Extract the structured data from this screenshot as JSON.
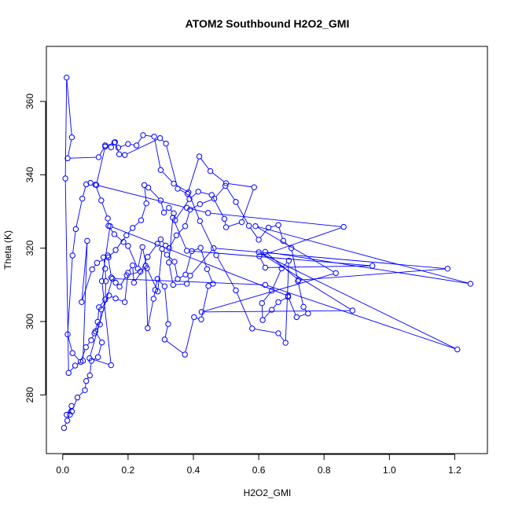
{
  "chart_data": {
    "type": "scatter",
    "title": "ATOM2 Southbound H2O2_GMI",
    "xlabel": "H2O2_GMI",
    "ylabel": "Theta (K)",
    "xlim": [
      -0.05,
      1.3
    ],
    "ylim": [
      264,
      375
    ],
    "x_ticks": [
      {
        "value": 0.0,
        "label": "0.0"
      },
      {
        "value": 0.2,
        "label": "0.2"
      },
      {
        "value": 0.4,
        "label": "0.4"
      },
      {
        "value": 0.6,
        "label": "0.6"
      },
      {
        "value": 0.8,
        "label": "0.8"
      },
      {
        "value": 1.0,
        "label": "1.0"
      },
      {
        "value": 1.2,
        "label": "1.2"
      }
    ],
    "y_ticks": [
      {
        "value": 280,
        "label": "280"
      },
      {
        "value": 300,
        "label": "300"
      },
      {
        "value": 320,
        "label": "320"
      },
      {
        "value": 340,
        "label": "340"
      },
      {
        "value": 360,
        "label": "360"
      }
    ],
    "series_color": "#0000ff",
    "grid": false,
    "legend": "none",
    "draw": "points connected by lines",
    "points": [
      [
        0.004,
        271
      ],
      [
        0.014,
        273
      ],
      [
        0.022,
        274.6
      ],
      [
        0.027,
        277
      ],
      [
        0.012,
        274.6
      ],
      [
        0.028,
        275.5
      ],
      [
        0.045,
        279.3
      ],
      [
        0.068,
        281.3
      ],
      [
        0.072,
        283.8
      ],
      [
        0.083,
        285.3
      ],
      [
        0.088,
        289.3
      ],
      [
        0.108,
        290.3
      ],
      [
        0.12,
        294.3
      ],
      [
        0.1,
        297.3
      ],
      [
        0.114,
        299.2
      ],
      [
        0.118,
        303.3
      ],
      [
        0.142,
        307.1
      ],
      [
        0.162,
        306.3
      ],
      [
        0.19,
        305.3
      ],
      [
        0.2,
        313.3
      ],
      [
        0.214,
        315.3
      ],
      [
        0.218,
        310.6
      ],
      [
        0.254,
        315.2
      ],
      [
        0.26,
        298.2
      ],
      [
        0.278,
        306.2
      ],
      [
        0.283,
        308.6
      ],
      [
        0.29,
        311.6
      ],
      [
        0.312,
        309.6
      ],
      [
        0.323,
        299.3
      ],
      [
        0.312,
        295.1
      ],
      [
        0.374,
        291.0
      ],
      [
        0.402,
        301.2
      ],
      [
        0.424,
        300.6
      ],
      [
        0.446,
        309.7
      ],
      [
        0.46,
        310.3
      ],
      [
        0.442,
        314.3
      ],
      [
        0.422,
        320.1
      ],
      [
        0.395,
        319.2
      ],
      [
        0.376,
        312.8
      ],
      [
        0.352,
        311.6
      ],
      [
        0.342,
        316.3
      ],
      [
        0.319,
        318.2
      ],
      [
        0.304,
        319.8
      ],
      [
        0.291,
        308.2
      ],
      [
        0.258,
        314.5
      ],
      [
        0.244,
        320.3
      ],
      [
        0.23,
        314.4
      ],
      [
        0.2,
        320.6
      ],
      [
        0.186,
        321.7
      ],
      [
        0.158,
        323.8
      ],
      [
        0.14,
        326.1
      ],
      [
        0.138,
        328.1
      ],
      [
        0.118,
        333.0
      ],
      [
        0.1,
        337.3
      ],
      [
        0.085,
        337.8
      ],
      [
        0.072,
        337.4
      ],
      [
        0.06,
        333.5
      ],
      [
        0.04,
        325.2
      ],
      [
        0.03,
        318.0
      ],
      [
        0.015,
        296.5
      ],
      [
        0.03,
        291.4
      ],
      [
        0.055,
        289.0
      ],
      [
        0.071,
        293.0
      ],
      [
        0.087,
        294.9
      ],
      [
        0.097,
        296.8
      ],
      [
        0.107,
        299.9
      ],
      [
        0.111,
        303.9
      ],
      [
        0.13,
        306.0
      ],
      [
        0.132,
        311.0
      ],
      [
        0.13,
        314.4
      ],
      [
        0.125,
        317.5
      ],
      [
        0.138,
        318.0
      ],
      [
        0.149,
        312.0
      ],
      [
        0.162,
        310.6
      ],
      [
        0.174,
        309.5
      ],
      [
        0.196,
        312.6
      ],
      [
        0.238,
        313.6
      ],
      [
        0.26,
        317.6
      ],
      [
        0.29,
        321.2
      ],
      [
        0.3,
        322.4
      ],
      [
        0.315,
        320.7
      ],
      [
        0.326,
        320.0
      ],
      [
        0.348,
        323.5
      ],
      [
        0.375,
        326.0
      ],
      [
        0.39,
        330.5
      ],
      [
        0.42,
        332.0
      ],
      [
        0.464,
        333.5
      ],
      [
        0.498,
        337.0
      ],
      [
        0.53,
        332.6
      ],
      [
        0.57,
        326.1
      ],
      [
        0.6,
        322.3
      ],
      [
        0.63,
        325.6
      ],
      [
        0.66,
        326.3
      ],
      [
        0.675,
        322.0
      ],
      [
        0.7,
        320.0
      ],
      [
        0.72,
        311.0
      ],
      [
        0.737,
        304.0
      ],
      [
        0.751,
        302.2
      ],
      [
        0.716,
        301.2
      ],
      [
        0.69,
        306.7
      ],
      [
        0.66,
        305.3
      ],
      [
        0.64,
        303.2
      ],
      [
        0.612,
        300.4
      ],
      [
        0.61,
        305.0
      ],
      [
        0.64,
        308.4
      ],
      [
        0.67,
        314.5
      ],
      [
        0.692,
        316.6
      ],
      [
        0.682,
        294.2
      ],
      [
        0.66,
        296.8
      ],
      [
        0.58,
        298.1
      ],
      [
        0.53,
        308.5
      ],
      [
        0.47,
        318.1
      ],
      [
        0.42,
        327.4
      ],
      [
        0.385,
        335.2
      ],
      [
        0.34,
        337.6
      ],
      [
        0.3,
        341.3
      ],
      [
        0.28,
        350.4
      ],
      [
        0.246,
        350.8
      ],
      [
        0.226,
        348.0
      ],
      [
        0.2,
        348.4
      ],
      [
        0.17,
        347.4
      ],
      [
        0.158,
        348.8
      ],
      [
        0.148,
        347.5
      ],
      [
        0.13,
        348.0
      ],
      [
        0.11,
        344.8
      ],
      [
        0.015,
        344.5
      ],
      [
        0.028,
        350.2
      ],
      [
        0.012,
        366.5
      ],
      [
        0.008,
        339.0
      ],
      [
        0.018,
        286.0
      ],
      [
        0.038,
        288.0
      ],
      [
        0.062,
        289.3
      ],
      [
        0.075,
        322.0
      ],
      [
        0.058,
        305.3
      ],
      [
        0.09,
        314.2
      ],
      [
        0.105,
        316.0
      ],
      [
        0.14,
        317.5
      ],
      [
        0.162,
        319.5
      ],
      [
        0.195,
        323.5
      ],
      [
        0.214,
        325.5
      ],
      [
        0.24,
        327.6
      ],
      [
        0.256,
        332.2
      ],
      [
        0.25,
        337.2
      ],
      [
        0.262,
        336.5
      ],
      [
        0.3,
        333.0
      ],
      [
        0.31,
        329.7
      ],
      [
        0.325,
        331.0
      ],
      [
        0.34,
        329.5
      ],
      [
        0.344,
        327.6
      ],
      [
        0.388,
        333.4
      ],
      [
        0.415,
        335.4
      ],
      [
        0.456,
        334.5
      ],
      [
        0.495,
        328.0
      ],
      [
        0.5,
        325.7
      ],
      [
        0.548,
        327.1
      ],
      [
        0.586,
        336.6
      ],
      [
        0.5,
        337.7
      ],
      [
        0.452,
        341.0
      ],
      [
        0.418,
        345.0
      ],
      [
        0.382,
        334.8
      ],
      [
        0.352,
        336.2
      ],
      [
        0.316,
        348.5
      ],
      [
        0.298,
        350.0
      ],
      [
        0.19,
        345.4
      ],
      [
        0.173,
        345.6
      ],
      [
        0.16,
        348.9
      ],
      [
        0.13,
        347.7
      ],
      [
        0.103,
        337.2
      ],
      [
        0.38,
        331.0
      ],
      [
        0.445,
        329.6
      ],
      [
        0.86,
        325.8
      ],
      [
        0.602,
        317.8
      ],
      [
        0.62,
        314.7
      ],
      [
        0.948,
        315.2
      ],
      [
        0.38,
        319.3
      ],
      [
        0.337,
        328.3
      ],
      [
        0.325,
        316.1
      ],
      [
        0.338,
        310.0
      ],
      [
        0.38,
        310.3
      ],
      [
        0.39,
        312.5
      ],
      [
        0.462,
        320.0
      ],
      [
        1.178,
        314.4
      ],
      [
        0.722,
        311.3
      ],
      [
        0.62,
        319.0
      ],
      [
        1.248,
        310.3
      ],
      [
        0.59,
        326.0
      ],
      [
        0.836,
        313.2
      ],
      [
        0.425,
        302.6
      ],
      [
        0.887,
        303.0
      ],
      [
        0.6,
        318.9
      ],
      [
        1.208,
        292.4
      ],
      [
        0.62,
        310.0
      ],
      [
        0.152,
        311.7
      ],
      [
        0.082,
        290.0
      ],
      [
        0.148,
        288.1
      ],
      [
        0.12,
        311.0
      ],
      [
        0.145,
        326.0
      ],
      [
        0.69,
        307.0
      ]
    ]
  }
}
